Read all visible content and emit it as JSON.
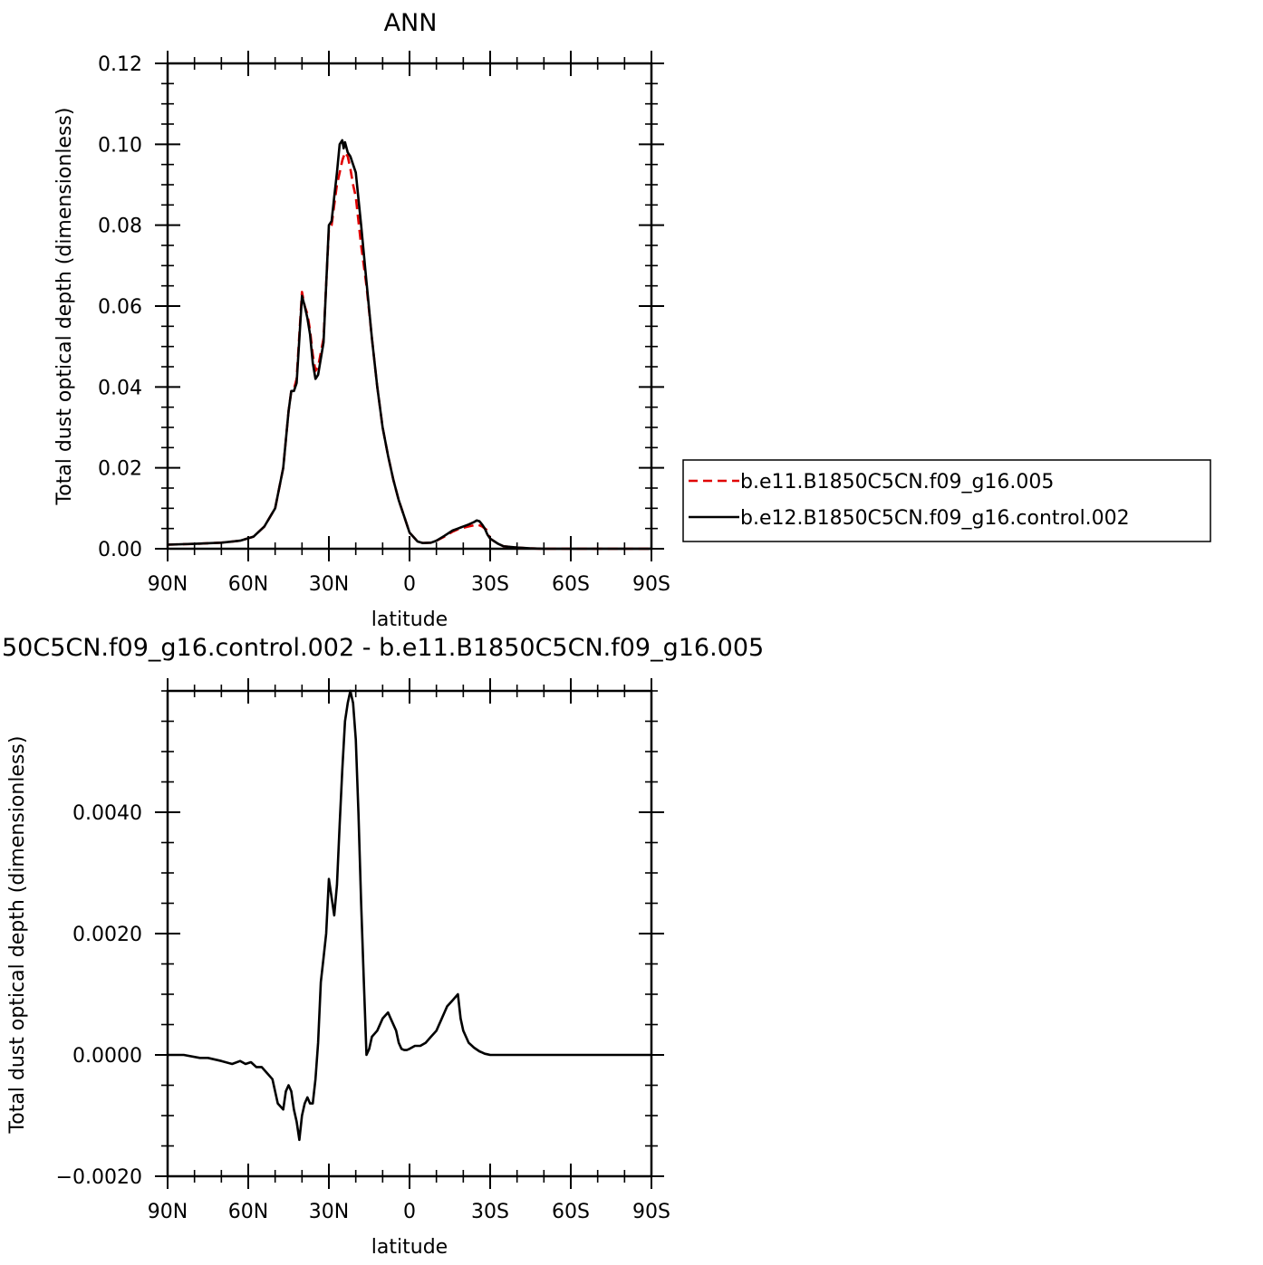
{
  "chart_data": [
    {
      "type": "line",
      "title": "ANN",
      "xlabel": "latitude",
      "ylabel": "Total dust optical depth (dimensionless)",
      "x_ticks": [
        90,
        60,
        30,
        0,
        -30,
        -60,
        -90
      ],
      "x_tick_labels": [
        "90N",
        "60N",
        "30N",
        "0",
        "30S",
        "60S",
        "90S"
      ],
      "xlim": [
        90,
        -90
      ],
      "y_ticks": [
        0.0,
        0.02,
        0.04,
        0.06,
        0.08,
        0.1,
        0.12
      ],
      "y_tick_labels": [
        "0.00",
        "0.02",
        "0.04",
        "0.06",
        "0.08",
        "0.10",
        "0.12"
      ],
      "ylim": [
        0,
        0.12
      ],
      "legend_position": "right",
      "series": [
        {
          "name": "b.e11.B1850C5CN.f09_g16.005",
          "color": "#e00000",
          "dash": "dashed",
          "x": [
            90,
            80,
            70,
            63,
            58,
            54,
            50,
            47,
            45,
            44,
            43,
            42,
            40,
            39,
            38,
            37,
            36,
            35,
            34,
            32,
            30,
            29,
            28,
            27,
            26,
            25,
            24,
            23,
            22,
            21,
            20,
            18,
            16,
            14,
            12,
            10,
            8,
            6,
            4,
            2,
            0,
            -3,
            -5,
            -8,
            -10,
            -13,
            -16,
            -18,
            -20,
            -22,
            -24,
            -25,
            -26,
            -27,
            -28,
            -29,
            -30,
            -33,
            -35,
            -40,
            -45,
            -50,
            -60,
            -70,
            -90
          ],
          "y": [
            0.001,
            0.0012,
            0.0015,
            0.002,
            0.003,
            0.0055,
            0.01,
            0.02,
            0.034,
            0.039,
            0.0395,
            0.042,
            0.0635,
            0.06,
            0.058,
            0.054,
            0.048,
            0.044,
            0.045,
            0.052,
            0.079,
            0.08,
            0.085,
            0.09,
            0.093,
            0.096,
            0.098,
            0.097,
            0.094,
            0.09,
            0.087,
            0.075,
            0.065,
            0.052,
            0.04,
            0.03,
            0.023,
            0.017,
            0.012,
            0.008,
            0.004,
            0.0018,
            0.0014,
            0.0015,
            0.002,
            0.003,
            0.0042,
            0.0048,
            0.0052,
            0.0055,
            0.0058,
            0.006,
            0.0058,
            0.0055,
            0.005,
            0.0045,
            0.0025,
            0.0012,
            0.0006,
            0.0003,
            0.0001,
            0.0,
            0.0,
            0.0,
            0.0
          ]
        },
        {
          "name": "b.e12.B1850C5CN.f09_g16.control.002",
          "color": "#000000",
          "dash": "solid",
          "x": [
            90,
            80,
            70,
            63,
            58,
            54,
            50,
            47,
            45,
            44,
            43,
            42,
            40,
            39,
            38,
            37,
            36,
            35,
            34,
            32,
            30,
            29,
            28,
            27,
            26,
            25,
            24.5,
            24,
            23,
            22,
            21,
            20,
            18,
            16,
            14,
            12,
            10,
            8,
            6,
            4,
            2,
            0,
            -3,
            -5,
            -8,
            -10,
            -13,
            -16,
            -18,
            -20,
            -22,
            -24,
            -25,
            -26,
            -27,
            -28,
            -29,
            -30,
            -33,
            -35,
            -40,
            -45,
            -50,
            -60,
            -70,
            -90
          ],
          "y": [
            0.001,
            0.0012,
            0.0015,
            0.002,
            0.003,
            0.0055,
            0.01,
            0.02,
            0.034,
            0.039,
            0.039,
            0.041,
            0.0625,
            0.06,
            0.057,
            0.053,
            0.046,
            0.042,
            0.043,
            0.051,
            0.08,
            0.081,
            0.087,
            0.093,
            0.1,
            0.101,
            0.099,
            0.1005,
            0.098,
            0.097,
            0.095,
            0.093,
            0.08,
            0.066,
            0.052,
            0.04,
            0.03,
            0.023,
            0.017,
            0.012,
            0.008,
            0.004,
            0.0018,
            0.0014,
            0.0015,
            0.002,
            0.0032,
            0.0045,
            0.005,
            0.0055,
            0.006,
            0.0066,
            0.007,
            0.0068,
            0.006,
            0.005,
            0.0035,
            0.0025,
            0.0012,
            0.0006,
            0.0003,
            0.0001,
            0.0,
            0.0,
            0.0,
            0.0
          ]
        }
      ]
    },
    {
      "type": "line",
      "title": "50C5CN.f09_g16.control.002 - b.e11.B1850C5CN.f09_g16.005",
      "xlabel": "latitude",
      "ylabel": "Total dust optical depth (dimensionless)",
      "x_ticks": [
        90,
        60,
        30,
        0,
        -30,
        -60,
        -90
      ],
      "x_tick_labels": [
        "90N",
        "60N",
        "30N",
        "0",
        "30S",
        "60S",
        "90S"
      ],
      "xlim": [
        90,
        -90
      ],
      "y_ticks": [
        -0.002,
        0.0,
        0.002,
        0.004
      ],
      "y_tick_labels": [
        "-0.0020",
        "0.0000",
        "0.0020",
        "0.0040"
      ],
      "ylim": [
        -0.002,
        0.006
      ],
      "series": [
        {
          "color": "#000000",
          "dash": "solid",
          "x": [
            90,
            84,
            78,
            75,
            70,
            66,
            63,
            61,
            59,
            57,
            55,
            53,
            51,
            49,
            47,
            46,
            45,
            44,
            43,
            42,
            41,
            40,
            39,
            38,
            37,
            36,
            35,
            34,
            33,
            32,
            31,
            30,
            28,
            27,
            26,
            25,
            24,
            23,
            22,
            21,
            20,
            19,
            18,
            17,
            16,
            15,
            14,
            12,
            10,
            8,
            7,
            5,
            4,
            3,
            2,
            1,
            0,
            -2,
            -4,
            -6,
            -8,
            -10,
            -12,
            -14,
            -16,
            -18,
            -19,
            -20,
            -21,
            -22,
            -24,
            -26,
            -27,
            -28,
            -29,
            -30,
            -31,
            -32,
            -34,
            -36,
            -38,
            -40,
            -45,
            -50,
            -60,
            -70,
            -90
          ],
          "y": [
            0.0,
            0.0,
            -5e-05,
            -5e-05,
            -0.0001,
            -0.00015,
            -0.0001,
            -0.00015,
            -0.00012,
            -0.0002,
            -0.0002,
            -0.0003,
            -0.0004,
            -0.0008,
            -0.0009,
            -0.0006,
            -0.0005,
            -0.0006,
            -0.0009,
            -0.0011,
            -0.0014,
            -0.001,
            -0.0008,
            -0.0007,
            -0.0008,
            -0.0008,
            -0.0004,
            0.0002,
            0.0012,
            0.0016,
            0.002,
            0.0029,
            0.0023,
            0.0028,
            0.0038,
            0.0047,
            0.0055,
            0.0058,
            0.006,
            0.0058,
            0.0052,
            0.004,
            0.0025,
            0.0012,
            0.0,
            0.0001,
            0.0003,
            0.0004,
            0.0006,
            0.0007,
            0.0006,
            0.0004,
            0.0002,
            0.0001,
            8e-05,
            8e-05,
            0.0001,
            0.00015,
            0.00015,
            0.0002,
            0.0003,
            0.0004,
            0.0006,
            0.0008,
            0.0009,
            0.001,
            0.0006,
            0.0004,
            0.0003,
            0.0002,
            0.00012,
            6e-05,
            4e-05,
            2e-05,
            1e-05,
            0.0,
            0.0,
            0.0,
            0.0,
            0.0,
            0.0,
            0.0,
            0.0,
            0.0,
            0.0,
            0.0,
            0.0
          ]
        }
      ]
    }
  ]
}
